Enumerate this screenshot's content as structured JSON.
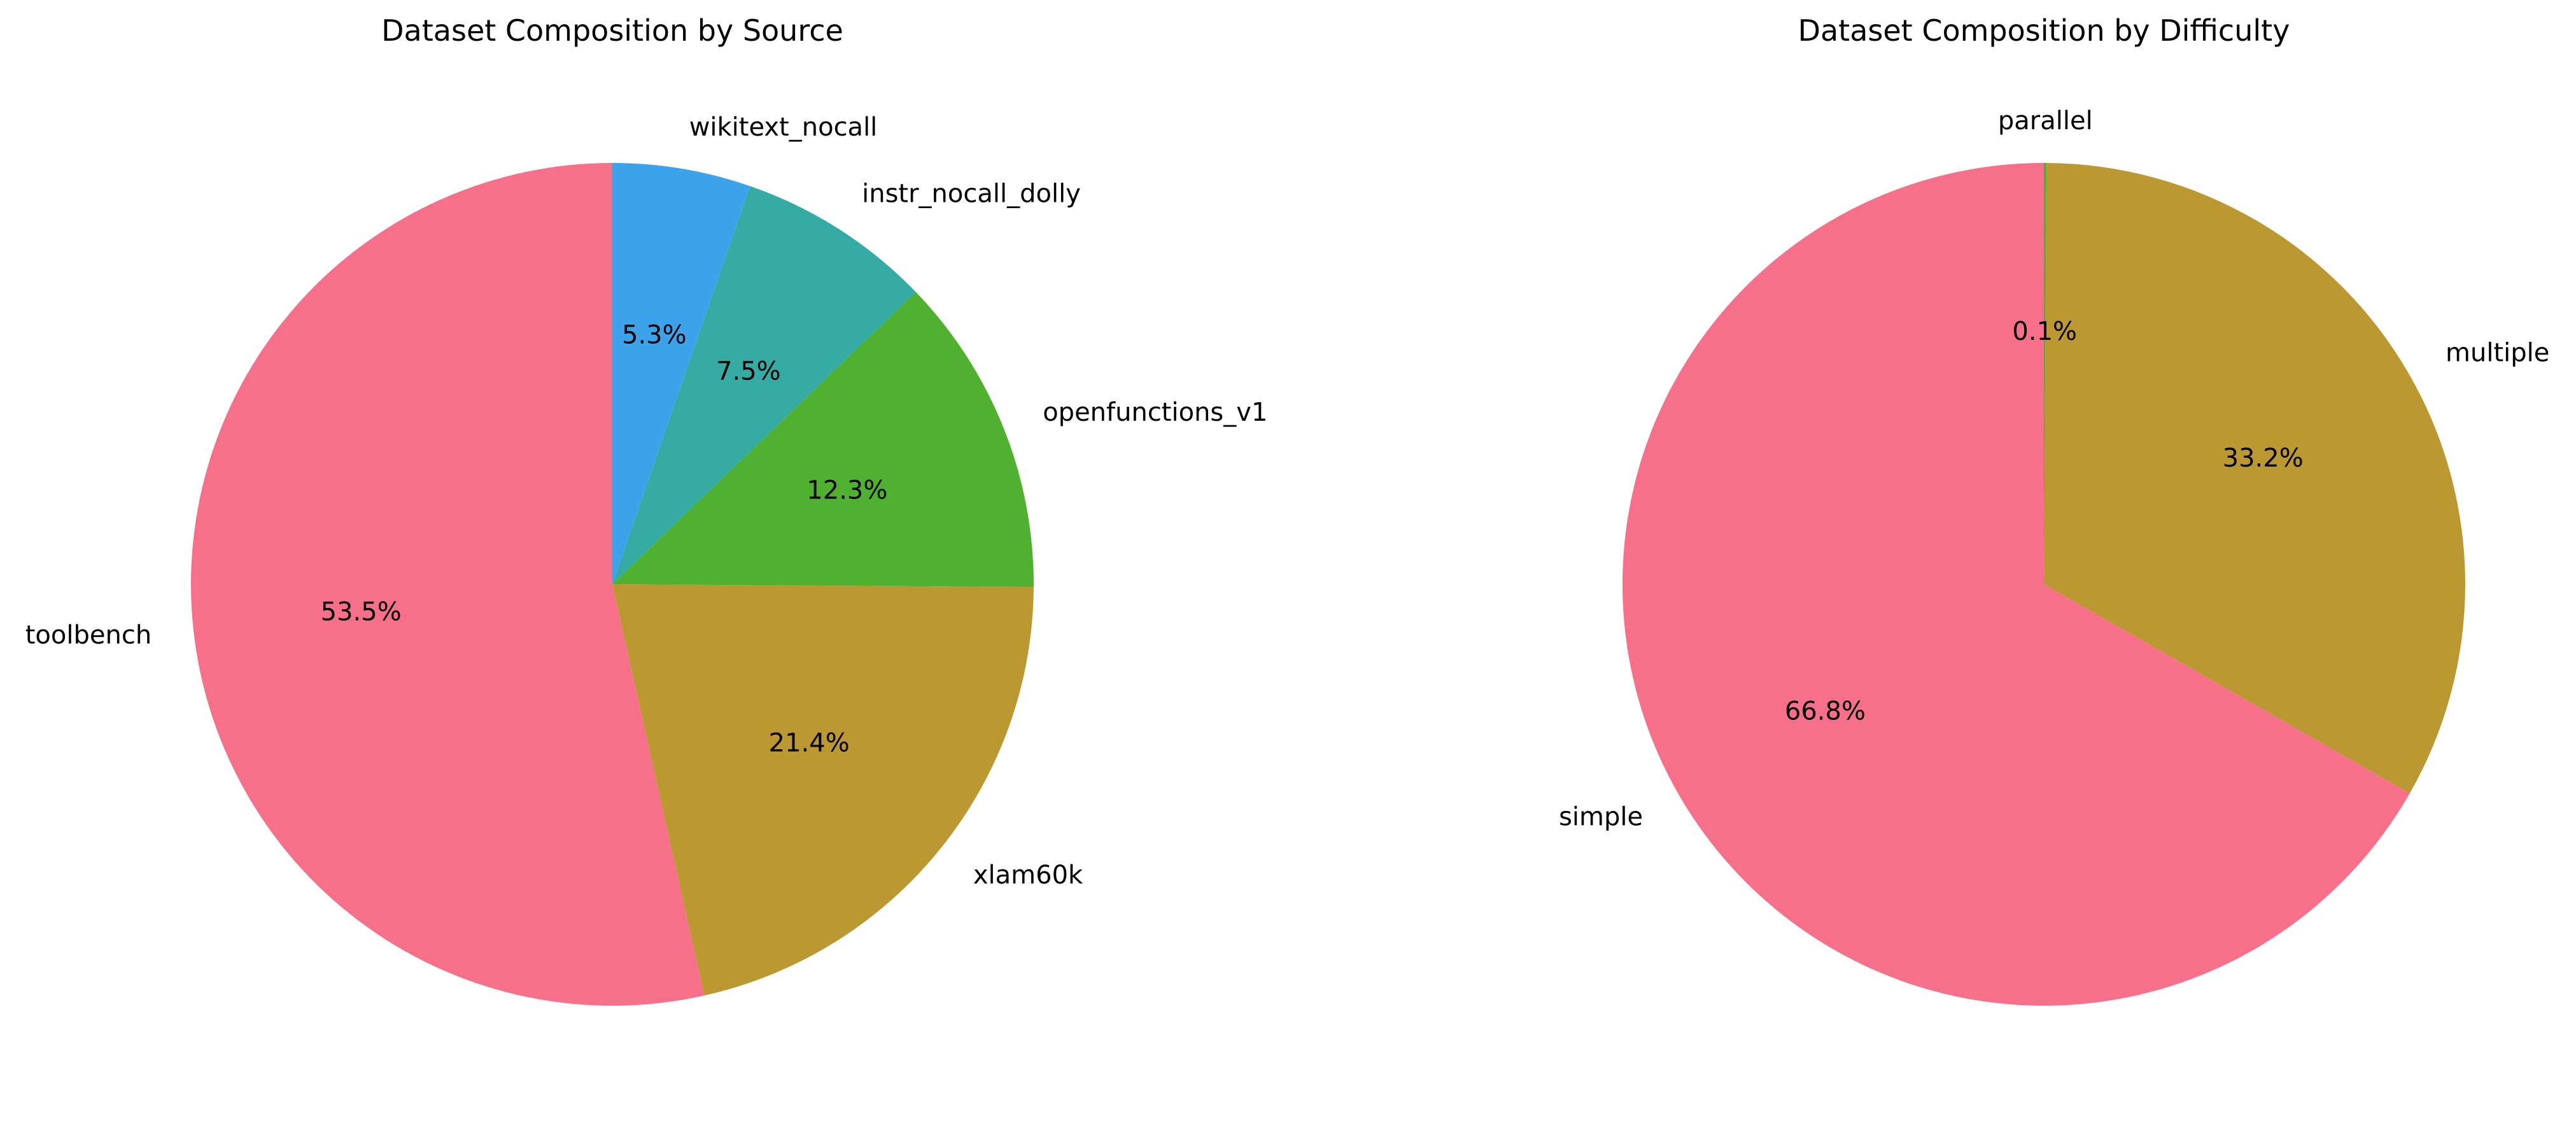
{
  "chart_data": [
    {
      "type": "pie",
      "title": "Dataset Composition by Source",
      "categories": [
        "wikitext_nocall",
        "instr_nocall_dolly",
        "openfunctions_v1",
        "xlam60k",
        "toolbench"
      ],
      "values": [
        5.3,
        7.5,
        12.3,
        21.4,
        53.5
      ],
      "value_labels": [
        "5.3%",
        "7.5%",
        "12.3%",
        "21.4%",
        "53.5%"
      ],
      "colors": [
        "#3ca2ea",
        "#36aba4",
        "#50b131",
        "#bb9832",
        "#f67089"
      ],
      "start_angle_deg": 90,
      "direction": "clockwise"
    },
    {
      "type": "pie",
      "title": "Dataset Composition by Difficulty",
      "categories": [
        "parallel",
        "multiple",
        "simple"
      ],
      "values": [
        0.1,
        33.2,
        66.8
      ],
      "value_labels": [
        "0.1%",
        "33.2%",
        "66.8%"
      ],
      "colors": [
        "#50b131",
        "#bb9832",
        "#f67089"
      ],
      "start_angle_deg": 90,
      "direction": "clockwise"
    }
  ]
}
